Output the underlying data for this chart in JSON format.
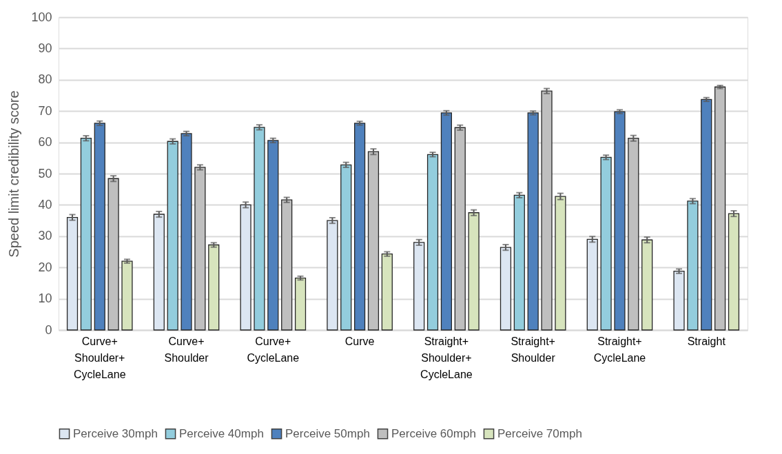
{
  "chart_data": {
    "type": "bar",
    "ylabel": "Speed limit credibility score",
    "categories": [
      "Curve+\nShoulder+\nCycleLane",
      "Curve+\nShoulder",
      "Curve+\nCycleLane",
      "Curve",
      "Straight+\nShoulder+\nCycleLane",
      "Straight+\nShoulder",
      "Straight+\nCycleLane",
      "Straight"
    ],
    "series": [
      {
        "name": "Perceive 30mph",
        "color": "#dce6f2",
        "values": [
          36,
          37,
          40,
          35,
          28,
          26.4,
          29,
          18.8
        ],
        "errors": [
          0.9,
          0.9,
          0.9,
          0.9,
          0.9,
          0.9,
          0.9,
          0.7
        ]
      },
      {
        "name": "Perceive 40mph",
        "color": "#93cddd",
        "values": [
          61.3,
          60.3,
          64.8,
          52.8,
          56.1,
          43.1,
          55.2,
          41.2
        ],
        "errors": [
          0.8,
          0.8,
          0.8,
          0.8,
          0.7,
          0.8,
          0.7,
          0.8
        ]
      },
      {
        "name": "Perceive 50mph",
        "color": "#4f81bd",
        "values": [
          66.1,
          62.8,
          60.6,
          66.1,
          69.4,
          69.4,
          69.8,
          73.7
        ],
        "errors": [
          0.7,
          0.7,
          0.7,
          0.6,
          0.7,
          0.6,
          0.6,
          0.6
        ]
      },
      {
        "name": "Perceive 60mph",
        "color": "#bfbfbf",
        "values": [
          48.4,
          52,
          41.6,
          57,
          64.7,
          76.4,
          61.3,
          77.7
        ],
        "errors": [
          0.9,
          0.8,
          0.8,
          0.9,
          0.8,
          0.8,
          0.9,
          0.5
        ]
      },
      {
        "name": "Perceive 70mph",
        "color": "#d7e4bd",
        "values": [
          22,
          27.2,
          16.6,
          24.3,
          37.5,
          42.7,
          28.8,
          37.2
        ],
        "errors": [
          0.6,
          0.7,
          0.6,
          0.7,
          0.9,
          1,
          0.9,
          0.9
        ]
      }
    ],
    "ylim": [
      0,
      100
    ],
    "yticks": [
      0,
      10,
      20,
      30,
      40,
      50,
      60,
      70,
      80,
      90,
      100
    ],
    "grid": "y",
    "legend": "bottom"
  }
}
